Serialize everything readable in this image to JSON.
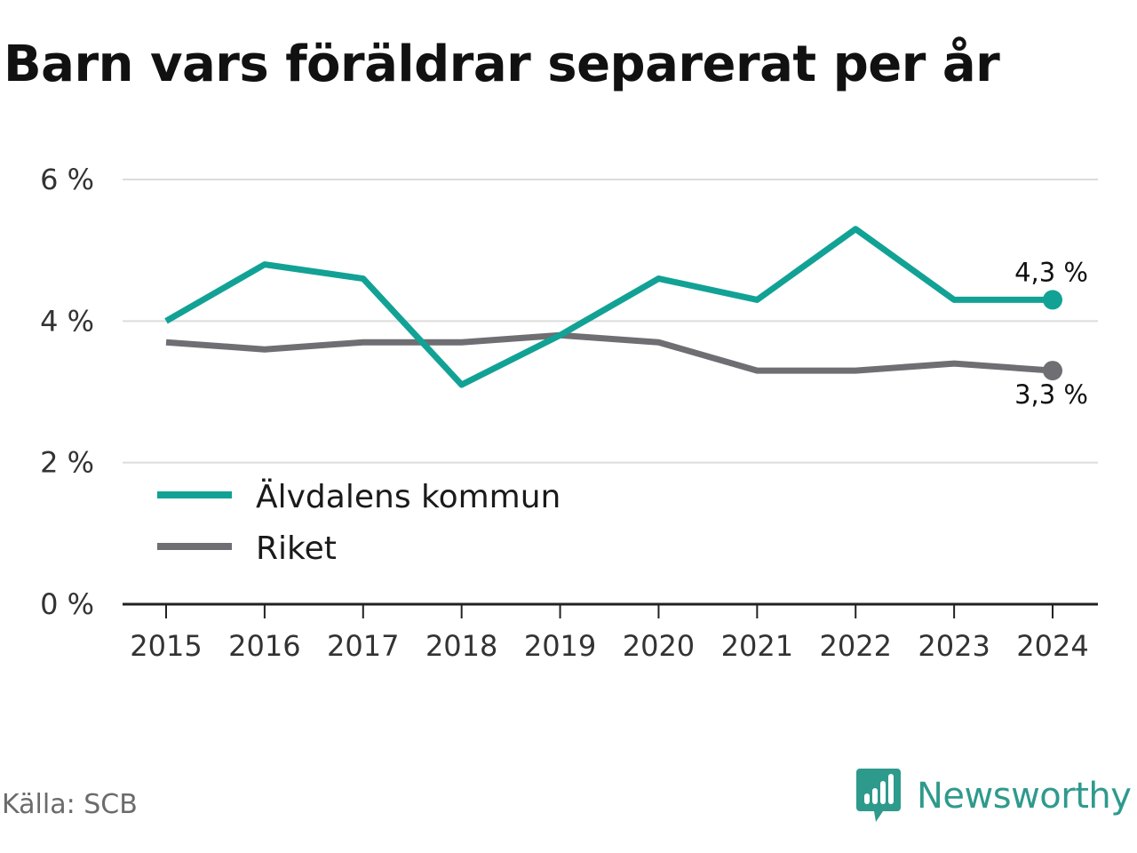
{
  "title": "Barn vars föräldrar separerat per år",
  "source": "Källa: SCB",
  "brand": {
    "name": "Newsworthy",
    "icon": "newsworthy-logo-icon",
    "color": "#2e9a8c"
  },
  "chart_data": {
    "type": "line",
    "title": "Barn vars föräldrar separerat per år",
    "xlabel": "",
    "ylabel": "",
    "x": [
      "2015",
      "2016",
      "2017",
      "2018",
      "2019",
      "2020",
      "2021",
      "2022",
      "2023",
      "2024"
    ],
    "ylim": [
      0,
      6
    ],
    "yticks": [
      {
        "value": 0,
        "label": "0 %"
      },
      {
        "value": 2,
        "label": "2 %"
      },
      {
        "value": 4,
        "label": "4 %"
      },
      {
        "value": 6,
        "label": "6 %"
      }
    ],
    "grid": true,
    "legend_position": "bottom-left",
    "series": [
      {
        "name": "Älvdalens kommun",
        "color": "#12a295",
        "values": [
          4.0,
          4.8,
          4.6,
          3.1,
          3.8,
          4.6,
          4.3,
          5.3,
          4.3,
          4.3
        ],
        "end_label": "4,3 %"
      },
      {
        "name": "Riket",
        "color": "#6f6e73",
        "values": [
          3.7,
          3.6,
          3.7,
          3.7,
          3.8,
          3.7,
          3.3,
          3.3,
          3.4,
          3.3
        ],
        "end_label": "3,3 %"
      }
    ]
  }
}
